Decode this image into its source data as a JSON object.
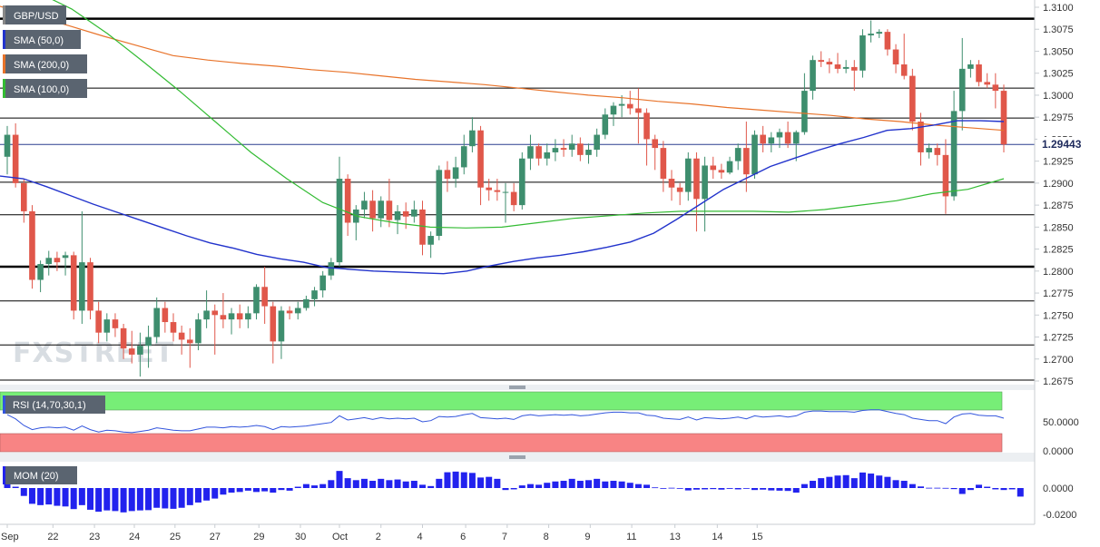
{
  "chart_data": {
    "type": "candlestick",
    "symbol": "GBP/USD",
    "price": {
      "ylim": [
        1.2665,
        1.3105
      ],
      "y_ticks": [
        "1.3100",
        "1.3075",
        "1.3050",
        "1.3025",
        "1.3000",
        "1.2975",
        "1.2950",
        "1.2925",
        "1.2900",
        "1.2875",
        "1.2850",
        "1.2825",
        "1.2800",
        "1.2775",
        "1.2750",
        "1.2725",
        "1.2700",
        "1.2675"
      ],
      "last_price": "1.29443",
      "hlines": [
        {
          "y": 1.3087,
          "heavy": true
        },
        {
          "y": 1.3008,
          "heavy": false
        },
        {
          "y": 1.2974,
          "heavy": false
        },
        {
          "y": 1.2944,
          "heavy": false,
          "color": "#2a3f8f"
        },
        {
          "y": 1.2901,
          "heavy": false
        },
        {
          "y": 1.2864,
          "heavy": false
        },
        {
          "y": 1.2805,
          "heavy": true
        },
        {
          "y": 1.2766,
          "heavy": false
        },
        {
          "y": 1.2716,
          "heavy": false
        },
        {
          "y": 1.2676,
          "heavy": false
        }
      ],
      "ohlc": [
        [
          1.293,
          1.2965,
          1.291,
          1.2955
        ],
        [
          1.2955,
          1.2968,
          1.2895,
          1.29
        ],
        [
          1.29,
          1.2905,
          1.2855,
          1.2868
        ],
        [
          1.2868,
          1.2875,
          1.278,
          1.279
        ],
        [
          1.279,
          1.2812,
          1.2776,
          1.2808
        ],
        [
          1.2808,
          1.2823,
          1.2795,
          1.2815
        ],
        [
          1.2815,
          1.2822,
          1.28,
          1.281
        ],
        [
          1.2815,
          1.2822,
          1.2795,
          1.2818
        ],
        [
          1.2818,
          1.2822,
          1.2745,
          1.2755
        ],
        [
          1.2755,
          1.2868,
          1.274,
          1.281
        ],
        [
          1.281,
          1.2815,
          1.2745,
          1.2755
        ],
        [
          1.2755,
          1.2765,
          1.2718,
          1.273
        ],
        [
          1.273,
          1.2752,
          1.272,
          1.2745
        ],
        [
          1.2745,
          1.2752,
          1.2725,
          1.2735
        ],
        [
          1.2735,
          1.274,
          1.27,
          1.2712
        ],
        [
          1.2712,
          1.2732,
          1.2695,
          1.2705
        ],
        [
          1.2705,
          1.273,
          1.268,
          1.2715
        ],
        [
          1.2715,
          1.2738,
          1.269,
          1.2725
        ],
        [
          1.2725,
          1.277,
          1.2718,
          1.2758
        ],
        [
          1.2758,
          1.2765,
          1.273,
          1.2742
        ],
        [
          1.2742,
          1.2752,
          1.272,
          1.273
        ],
        [
          1.273,
          1.2738,
          1.2705,
          1.2722
        ],
        [
          1.2722,
          1.2735,
          1.269,
          1.2718
        ],
        [
          1.2718,
          1.2752,
          1.271,
          1.2745
        ],
        [
          1.2745,
          1.2778,
          1.2735,
          1.2755
        ],
        [
          1.2755,
          1.2762,
          1.2705,
          1.275
        ],
        [
          1.275,
          1.2775,
          1.2735,
          1.2745
        ],
        [
          1.2745,
          1.2758,
          1.2728,
          1.2752
        ],
        [
          1.2752,
          1.2762,
          1.2735,
          1.2745
        ],
        [
          1.2745,
          1.276,
          1.2735,
          1.2752
        ],
        [
          1.2752,
          1.2785,
          1.2745,
          1.2782
        ],
        [
          1.2782,
          1.2805,
          1.274,
          1.276
        ],
        [
          1.276,
          1.2765,
          1.2695,
          1.272
        ],
        [
          1.272,
          1.276,
          1.27,
          1.2755
        ],
        [
          1.2755,
          1.276,
          1.2745,
          1.2752
        ],
        [
          1.2752,
          1.2765,
          1.2745,
          1.2758
        ],
        [
          1.2758,
          1.2772,
          1.2755,
          1.2768
        ],
        [
          1.2768,
          1.2782,
          1.276,
          1.2778
        ],
        [
          1.2778,
          1.28,
          1.277,
          1.2795
        ],
        [
          1.2795,
          1.2815,
          1.279,
          1.281
        ],
        [
          1.281,
          1.293,
          1.2805,
          1.2905
        ],
        [
          1.2905,
          1.291,
          1.284,
          1.2855
        ],
        [
          1.2855,
          1.2875,
          1.2835,
          1.287
        ],
        [
          1.287,
          1.289,
          1.286,
          1.288
        ],
        [
          1.288,
          1.2892,
          1.2845,
          1.286
        ],
        [
          1.286,
          1.2885,
          1.285,
          1.288
        ],
        [
          1.288,
          1.2905,
          1.285,
          1.2858
        ],
        [
          1.2858,
          1.2875,
          1.2842,
          1.2868
        ],
        [
          1.2868,
          1.2878,
          1.2848,
          1.2862
        ],
        [
          1.2862,
          1.288,
          1.2855,
          1.287
        ],
        [
          1.287,
          1.288,
          1.2818,
          1.283
        ],
        [
          1.283,
          1.2845,
          1.2815,
          1.284
        ],
        [
          1.284,
          1.292,
          1.2835,
          1.2915
        ],
        [
          1.2915,
          1.2925,
          1.289,
          1.2905
        ],
        [
          1.2905,
          1.293,
          1.2895,
          1.2918
        ],
        [
          1.2918,
          1.2955,
          1.291,
          1.2942
        ],
        [
          1.2942,
          1.2975,
          1.2935,
          1.296
        ],
        [
          1.296,
          1.2965,
          1.2875,
          1.2895
        ],
        [
          1.2895,
          1.2905,
          1.288,
          1.2892
        ],
        [
          1.2892,
          1.2905,
          1.288,
          1.289
        ],
        [
          1.289,
          1.29,
          1.2855,
          1.289
        ],
        [
          1.289,
          1.29,
          1.2868,
          1.2875
        ],
        [
          1.2875,
          1.2935,
          1.287,
          1.2928
        ],
        [
          1.2928,
          1.2955,
          1.2915,
          1.2942
        ],
        [
          1.2942,
          1.2945,
          1.292,
          1.2928
        ],
        [
          1.2928,
          1.2945,
          1.292,
          1.2935
        ],
        [
          1.2935,
          1.295,
          1.2925,
          1.294
        ],
        [
          1.294,
          1.295,
          1.293,
          1.2938
        ],
        [
          1.2938,
          1.2955,
          1.293,
          1.2945
        ],
        [
          1.2945,
          1.2952,
          1.2925,
          1.2932
        ],
        [
          1.2932,
          1.2945,
          1.2922,
          1.2938
        ],
        [
          1.2938,
          1.2962,
          1.293,
          1.2955
        ],
        [
          1.2955,
          1.2985,
          1.295,
          1.2978
        ],
        [
          1.2978,
          1.2992,
          1.2965,
          1.2988
        ],
        [
          1.2988,
          1.3,
          1.2975,
          1.299
        ],
        [
          1.299,
          1.3005,
          1.2978,
          1.2985
        ],
        [
          1.2985,
          1.3008,
          1.2945,
          1.298
        ],
        [
          1.298,
          1.2985,
          1.292,
          1.295
        ],
        [
          1.295,
          1.2955,
          1.2915,
          1.294
        ],
        [
          1.294,
          1.2948,
          1.289,
          1.2905
        ],
        [
          1.2905,
          1.2915,
          1.288,
          1.2895
        ],
        [
          1.2895,
          1.29,
          1.2875,
          1.289
        ],
        [
          1.289,
          1.2935,
          1.288,
          1.2928
        ],
        [
          1.2928,
          1.2935,
          1.2845,
          1.2882
        ],
        [
          1.2882,
          1.293,
          1.2845,
          1.292
        ],
        [
          1.292,
          1.293,
          1.2905,
          1.2915
        ],
        [
          1.2915,
          1.2922,
          1.2905,
          1.2912
        ],
        [
          1.2912,
          1.293,
          1.291,
          1.2925
        ],
        [
          1.2925,
          1.2945,
          1.2915,
          1.294
        ],
        [
          1.294,
          1.297,
          1.289,
          1.291
        ],
        [
          1.291,
          1.296,
          1.2905,
          1.2955
        ],
        [
          1.2955,
          1.2965,
          1.2935,
          1.2945
        ],
        [
          1.2945,
          1.2958,
          1.2935,
          1.2952
        ],
        [
          1.2952,
          1.2962,
          1.294,
          1.2958
        ],
        [
          1.2958,
          1.297,
          1.294,
          1.2945
        ],
        [
          1.2945,
          1.296,
          1.2925,
          1.2958
        ],
        [
          1.2958,
          1.3025,
          1.2955,
          1.3005
        ],
        [
          1.3005,
          1.3045,
          1.2995,
          1.304
        ],
        [
          1.304,
          1.305,
          1.3032,
          1.3038
        ],
        [
          1.3038,
          1.3042,
          1.3025,
          1.3035
        ],
        [
          1.3035,
          1.3048,
          1.3025,
          1.303
        ],
        [
          1.303,
          1.304,
          1.3025,
          1.3032
        ],
        [
          1.3032,
          1.304,
          1.3005,
          1.3028
        ],
        [
          1.3028,
          1.3075,
          1.302,
          1.3068
        ],
        [
          1.3068,
          1.3085,
          1.306,
          1.307
        ],
        [
          1.307,
          1.3075,
          1.3065,
          1.3072
        ],
        [
          1.3072,
          1.3075,
          1.3045,
          1.3052
        ],
        [
          1.3052,
          1.3058,
          1.3025,
          1.3035
        ],
        [
          1.3035,
          1.307,
          1.3018,
          1.3022
        ],
        [
          1.3022,
          1.303,
          1.296,
          1.297
        ],
        [
          1.297,
          1.298,
          1.292,
          1.2935
        ],
        [
          1.2935,
          1.2945,
          1.2928,
          1.294
        ],
        [
          1.294,
          1.2945,
          1.292,
          1.2932
        ],
        [
          1.2932,
          1.295,
          1.2865,
          1.2885
        ],
        [
          1.2885,
          1.3005,
          1.288,
          1.2982
        ],
        [
          1.2982,
          1.3065,
          1.296,
          1.303
        ],
        [
          1.303,
          1.304,
          1.302,
          1.3035
        ],
        [
          1.3035,
          1.304,
          1.301,
          1.3015
        ],
        [
          1.3015,
          1.3025,
          1.3008,
          1.3012
        ],
        [
          1.3012,
          1.3025,
          1.2985,
          1.3005
        ],
        [
          1.3005,
          1.3012,
          1.2935,
          1.2944
        ]
      ],
      "sma50": [
        1.2908,
        1.2905,
        1.2896,
        1.2886,
        1.2876,
        1.2867,
        1.2858,
        1.2849,
        1.284,
        1.2832,
        1.2826,
        1.2819,
        1.2814,
        1.281,
        1.2804,
        1.2802,
        1.28,
        1.2799,
        1.2798,
        1.2797,
        1.28,
        1.2806,
        1.2811,
        1.2815,
        1.2818,
        1.2822,
        1.2827,
        1.2833,
        1.2843,
        1.2859,
        1.2876,
        1.2893,
        1.2906,
        1.2919,
        1.2928,
        1.2937,
        1.2945,
        1.2952,
        1.296,
        1.2962,
        1.2966,
        1.2971,
        1.2971,
        1.297
      ],
      "sma200": [
        1.3101,
        1.309,
        1.3079,
        1.3067,
        1.3056,
        1.3045,
        1.304,
        1.3036,
        1.3033,
        1.3029,
        1.3026,
        1.3022,
        1.3018,
        1.3015,
        1.3012,
        1.3008,
        1.3004,
        1.3,
        1.2997,
        1.2993,
        1.299,
        1.2986,
        1.2983,
        1.298,
        1.2977,
        1.2973,
        1.297,
        1.2966,
        1.2963,
        1.296
      ],
      "sma100": [
        1.3135,
        1.3118,
        1.3098,
        1.307,
        1.3038,
        1.3005,
        1.297,
        1.2935,
        1.2905,
        1.2878,
        1.2862,
        1.2855,
        1.285,
        1.2849,
        1.285,
        1.2855,
        1.286,
        1.2863,
        1.2866,
        1.2868,
        1.2868,
        1.2868,
        1.2867,
        1.287,
        1.2875,
        1.288,
        1.2888,
        1.2893,
        1.2905
      ]
    },
    "rsi": {
      "label": "RSI (14,70,30,1)",
      "y_ticks": [
        "50.0000",
        "0.0000"
      ],
      "values": [
        62,
        55,
        44,
        37,
        40,
        41,
        40,
        41,
        36,
        43,
        37,
        33,
        36,
        35,
        33,
        32,
        34,
        36,
        40,
        38,
        36,
        35,
        35,
        38,
        41,
        41,
        40,
        42,
        41,
        42,
        44,
        42,
        37,
        42,
        41,
        42,
        43,
        45,
        47,
        49,
        60,
        53,
        55,
        57,
        54,
        57,
        55,
        56,
        55,
        56,
        50,
        52,
        59,
        58,
        59,
        62,
        64,
        57,
        56,
        55,
        56,
        54,
        60,
        62,
        60,
        61,
        62,
        61,
        62,
        60,
        61,
        63,
        65,
        66,
        66,
        65,
        65,
        61,
        60,
        56,
        55,
        54,
        58,
        53,
        57,
        56,
        55,
        56,
        58,
        55,
        60,
        58,
        59,
        60,
        58,
        60,
        66,
        68,
        68,
        67,
        67,
        67,
        66,
        69,
        70,
        70,
        67,
        64,
        62,
        56,
        54,
        52,
        52,
        47,
        58,
        63,
        64,
        61,
        60,
        60,
        56
      ]
    },
    "mom": {
      "label": "MOM (20)",
      "y_ticks": [
        "0.0000",
        "-0.0200"
      ],
      "values": [
        0.003,
        0.001,
        -0.006,
        -0.012,
        -0.013,
        -0.0125,
        -0.0135,
        -0.014,
        -0.016,
        -0.013,
        -0.0165,
        -0.018,
        -0.017,
        -0.0175,
        -0.0185,
        -0.0175,
        -0.017,
        -0.0168,
        -0.015,
        -0.0155,
        -0.0158,
        -0.015,
        -0.013,
        -0.011,
        -0.0095,
        -0.008,
        -0.005,
        -0.0035,
        -0.003,
        -0.002,
        -0.003,
        -0.0025,
        -0.0035,
        -0.0015,
        -0.002,
        0.001,
        0.003,
        0.002,
        0.003,
        0.006,
        0.013,
        0.0075,
        0.006,
        0.007,
        0.0055,
        0.007,
        0.006,
        0.0065,
        0.005,
        0.0055,
        0.0025,
        0.0015,
        0.007,
        0.012,
        0.0125,
        0.012,
        0.0115,
        0.008,
        0.0085,
        0.007,
        -0.0015,
        -0.001,
        0.002,
        0.003,
        0.0025,
        0.004,
        0.005,
        0.0055,
        0.007,
        0.0055,
        0.006,
        0.007,
        0.005,
        0.0055,
        0.005,
        0.004,
        0.003,
        0.0025,
        0.0005,
        -0.0003,
        0.0002,
        -0.0005,
        -0.0018,
        -0.0012,
        -0.001,
        -0.0008,
        -0.0012,
        -0.0006,
        -0.001,
        -0.0005,
        -0.0015,
        -0.0012,
        -0.0018,
        -0.002,
        -0.0022,
        -0.0035,
        0.003,
        0.0055,
        0.0075,
        0.0085,
        0.0095,
        0.0098,
        0.0075,
        0.0118,
        0.011,
        0.0095,
        0.0085,
        0.006,
        0.0055,
        0.003,
        0.0012,
        0.0002,
        0.0002,
        0.0001,
        -0.0008,
        -0.0045,
        -0.0015,
        0.0025,
        0.001,
        -0.001,
        -0.0015,
        -0.001,
        -0.0065
      ]
    },
    "x_labels": [
      {
        "text": "Sep",
        "i": 0.0
      },
      {
        "text": "22",
        "i": 5.5
      },
      {
        "text": "23",
        "i": 10.5
      },
      {
        "text": "24",
        "i": 15.3
      },
      {
        "text": "25",
        "i": 20.2
      },
      {
        "text": "27",
        "i": 25.0
      },
      {
        "text": "29",
        "i": 30.3
      },
      {
        "text": "30",
        "i": 35.3
      },
      {
        "text": "Oct",
        "i": 40.0
      },
      {
        "text": "2",
        "i": 45.0
      },
      {
        "text": "4",
        "i": 50.0
      },
      {
        "text": "6",
        "i": 55.2
      },
      {
        "text": "7",
        "i": 60.2
      },
      {
        "text": "8",
        "i": 65.2
      },
      {
        "text": "9",
        "i": 70.2
      },
      {
        "text": "11",
        "i": 75.2
      },
      {
        "text": "13",
        "i": 80.4
      },
      {
        "text": "14",
        "i": 85.5
      },
      {
        "text": "15",
        "i": 90.3
      }
    ],
    "colors": {
      "bull": "#3e8e6e",
      "bear": "#e0574a",
      "sma50": "#2233cc",
      "sma200": "#e8732a",
      "sma100": "#33bb33",
      "rsi_line": "#3355dd",
      "rsi_overbought": "#77ee77",
      "rsi_oversold": "#f88484",
      "mom_bar": "#2222ee"
    },
    "legend": [
      {
        "label": "GBP/USD",
        "color": "#888888"
      },
      {
        "label": "SMA (50,0)",
        "color": "#2233cc"
      },
      {
        "label": "SMA (200,0)",
        "color": "#e8732a"
      },
      {
        "label": "SMA (100,0)",
        "color": "#33bb33"
      }
    ],
    "watermark": "FXSTREET"
  }
}
